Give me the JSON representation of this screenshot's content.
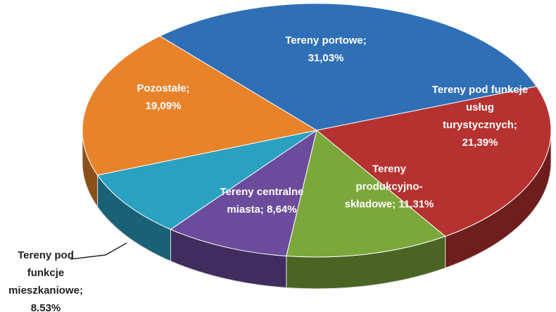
{
  "chart_data": {
    "type": "pie",
    "categories": [
      "Tereny portowe;",
      "Tereny pod funkcje usług turystycznych;",
      "Tereny produkcyjno-składowe;",
      "Tereny centralne miasta;",
      "Tereny pod funkcje mieszkaniowe;",
      "Pozostałe;"
    ],
    "values": [
      31.03,
      21.39,
      11.31,
      8.64,
      8.53,
      19.09
    ],
    "value_labels": [
      "31,03%",
      "21,39%",
      "11,31%",
      "8,64%",
      "8.53%",
      "19,09%"
    ],
    "colors": [
      "#2f6fb6",
      "#b53230",
      "#7ba73b",
      "#6b4b9b",
      "#2aa1c1",
      "#e8832b"
    ]
  }
}
